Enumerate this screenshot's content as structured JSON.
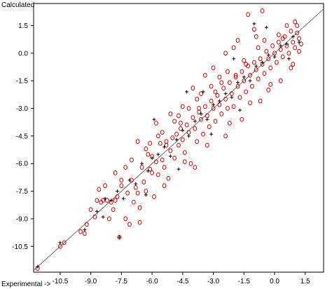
{
  "chart_data": {
    "type": "scatter",
    "title": "",
    "ylabel": "Calculated",
    "xlabel": "Experimental ->",
    "xlim": [
      -11.8,
      2.4
    ],
    "ylim": [
      -11.9,
      2.7
    ],
    "x_ticks": [
      -10.5,
      -9.0,
      -7.5,
      -6.0,
      -4.5,
      -3.0,
      -1.5,
      0.0,
      1.5
    ],
    "x_tick_labels": [
      "-10.5",
      "-9.0",
      "-7.5",
      "-6.0",
      "-4.5",
      "-3.0",
      "-1.5",
      "0.0",
      "1.5"
    ],
    "y_ticks": [
      1.5,
      0.0,
      -1.5,
      -3.0,
      -4.5,
      -6.0,
      -7.5,
      -9.0,
      -10.5
    ],
    "y_tick_labels": [
      "1.5",
      "0.0",
      "-1.5",
      "-3.0",
      "-4.5",
      "-6.0",
      "-7.5",
      "-9.0",
      "-10.5"
    ],
    "grid": false,
    "legend": "none",
    "reference_line": {
      "from": [
        -11.8,
        -11.8
      ],
      "to": [
        2.4,
        2.4
      ]
    },
    "series": [
      {
        "marker": "circle",
        "color": "#dd0000",
        "note_points": "dense cloud along the diagonal; representative sample",
        "points": [
          [
            -11.6,
            -11.7
          ],
          [
            -10.5,
            -10.5
          ],
          [
            -10.3,
            -10.3
          ],
          [
            -9.5,
            -9.7
          ],
          [
            -9.3,
            -9.8
          ],
          [
            -9.2,
            -9.3
          ],
          [
            -8.8,
            -8.9
          ],
          [
            -8.7,
            -8.0
          ],
          [
            -8.5,
            -8.1
          ],
          [
            -8.4,
            -8.0
          ],
          [
            -8.2,
            -8.0
          ],
          [
            -8.1,
            -9.0
          ],
          [
            -8.0,
            -8.1
          ],
          [
            -7.9,
            -8.5
          ],
          [
            -7.8,
            -8.0
          ],
          [
            -7.7,
            -7.8
          ],
          [
            -7.6,
            -10.0
          ],
          [
            -7.5,
            -7.2
          ],
          [
            -7.3,
            -9.0
          ],
          [
            -7.2,
            -7.6
          ],
          [
            -7.1,
            -9.3
          ],
          [
            -7.0,
            -6.9
          ],
          [
            -6.9,
            -8.1
          ],
          [
            -6.8,
            -7.3
          ],
          [
            -6.7,
            -7.6
          ],
          [
            -6.6,
            -8.4
          ],
          [
            -6.5,
            -6.2
          ],
          [
            -6.4,
            -7.0
          ],
          [
            -6.3,
            -7.5
          ],
          [
            -6.2,
            -5.5
          ],
          [
            -6.1,
            -6.3
          ],
          [
            -6.0,
            -6.5
          ],
          [
            -5.9,
            -7.8
          ],
          [
            -5.8,
            -5.9
          ],
          [
            -5.7,
            -6.6
          ],
          [
            -5.6,
            -4.9
          ],
          [
            -5.5,
            -5.8
          ],
          [
            -5.4,
            -6.2
          ],
          [
            -5.3,
            -5.0
          ],
          [
            -5.2,
            -6.8
          ],
          [
            -5.1,
            -5.3
          ],
          [
            -5.0,
            -4.6
          ],
          [
            -4.9,
            -5.7
          ],
          [
            -4.8,
            -4.4
          ],
          [
            -4.7,
            -5.0
          ],
          [
            -4.6,
            -3.8
          ],
          [
            -4.5,
            -4.7
          ],
          [
            -4.4,
            -5.4
          ],
          [
            -4.3,
            -3.9
          ],
          [
            -4.2,
            -4.3
          ],
          [
            -4.1,
            -6.0
          ],
          [
            -4.0,
            -3.5
          ],
          [
            -3.9,
            -4.1
          ],
          [
            -3.8,
            -4.8
          ],
          [
            -3.7,
            -3.2
          ],
          [
            -3.6,
            -3.6
          ],
          [
            -3.5,
            -4.4
          ],
          [
            -3.4,
            -2.9
          ],
          [
            -3.3,
            -3.4
          ],
          [
            -3.2,
            -4.0
          ],
          [
            -3.1,
            -2.6
          ],
          [
            -3.0,
            -3.0
          ],
          [
            -2.9,
            -3.7
          ],
          [
            -2.8,
            -2.3
          ],
          [
            -2.7,
            -2.8
          ],
          [
            -2.6,
            -3.3
          ],
          [
            -2.5,
            -1.9
          ],
          [
            -2.4,
            -2.5
          ],
          [
            -2.3,
            -3.0
          ],
          [
            -2.2,
            -1.6
          ],
          [
            -2.1,
            -2.2
          ],
          [
            -2.0,
            -2.9
          ],
          [
            -1.9,
            -1.3
          ],
          [
            -1.8,
            -1.8
          ],
          [
            -1.7,
            -2.4
          ],
          [
            -1.6,
            -1.0
          ],
          [
            -1.5,
            -1.5
          ],
          [
            -1.4,
            -2.1
          ],
          [
            -1.3,
            -0.7
          ],
          [
            -1.2,
            -1.2
          ],
          [
            -1.1,
            -1.8
          ],
          [
            -1.0,
            -0.5
          ],
          [
            -0.9,
            -0.9
          ],
          [
            -0.8,
            -1.4
          ],
          [
            -0.7,
            -0.3
          ],
          [
            -0.6,
            -0.6
          ],
          [
            -0.5,
            -1.1
          ],
          [
            -0.4,
            0.1
          ],
          [
            -0.3,
            -0.3
          ],
          [
            -0.2,
            -0.8
          ],
          [
            -0.1,
            0.4
          ],
          [
            0.0,
            0.0
          ],
          [
            0.1,
            -0.5
          ],
          [
            0.2,
            0.6
          ],
          [
            0.3,
            0.2
          ],
          [
            0.4,
            -0.2
          ],
          [
            0.5,
            0.9
          ],
          [
            0.6,
            0.4
          ],
          [
            0.7,
            0.0
          ],
          [
            0.8,
            1.2
          ],
          [
            0.9,
            0.6
          ],
          [
            1.0,
            0.3
          ],
          [
            1.1,
            1.5
          ],
          [
            1.2,
            0.8
          ],
          [
            1.3,
            0.5
          ],
          [
            -1.0,
            1.3
          ],
          [
            -1.3,
            2.1
          ],
          [
            -0.6,
            2.3
          ],
          [
            -2.0,
            0.3
          ],
          [
            -3.4,
            -1.2
          ],
          [
            -4.5,
            -2.9
          ],
          [
            -5.8,
            -3.8
          ],
          [
            -6.7,
            -4.8
          ],
          [
            -5.1,
            -3.3
          ],
          [
            -2.4,
            -4.5
          ],
          [
            -1.6,
            -3.6
          ],
          [
            -0.7,
            -2.6
          ],
          [
            -3.9,
            -6.2
          ],
          [
            -5.4,
            -7.2
          ],
          [
            -6.6,
            -9.2
          ],
          [
            -8.3,
            -7.2
          ],
          [
            -9.0,
            -8.5
          ],
          [
            -7.5,
            -6.9
          ],
          [
            -4.0,
            -1.9
          ],
          [
            -3.0,
            -0.8
          ],
          [
            -2.4,
            0.0
          ],
          [
            -1.8,
            0.7
          ],
          [
            -0.9,
            0.9
          ],
          [
            0.6,
            1.5
          ],
          [
            1.0,
            1.7
          ],
          [
            0.8,
            -0.8
          ],
          [
            0.3,
            -1.5
          ],
          [
            -0.3,
            -2.0
          ],
          [
            -2.7,
            -1.3
          ],
          [
            -3.6,
            -2.2
          ],
          [
            -4.7,
            -3.4
          ],
          [
            -5.5,
            -4.3
          ],
          [
            -6.1,
            -4.9
          ],
          [
            -7.0,
            -5.8
          ],
          [
            -7.8,
            -6.5
          ],
          [
            -8.6,
            -7.4
          ],
          [
            -4.4,
            -5.9
          ],
          [
            -3.3,
            -5.0
          ],
          [
            -2.2,
            -3.8
          ],
          [
            -1.2,
            -2.7
          ],
          [
            -0.2,
            -1.7
          ],
          [
            0.9,
            -0.6
          ],
          [
            1.2,
            0.1
          ],
          [
            -1.5,
            -0.4
          ],
          [
            -2.3,
            -1.0
          ],
          [
            -3.1,
            -1.8
          ],
          [
            -3.8,
            -2.5
          ],
          [
            -4.2,
            -3.0
          ],
          [
            -4.9,
            -3.7
          ],
          [
            -5.7,
            -4.5
          ],
          [
            -6.3,
            -5.2
          ],
          [
            -7.3,
            -6.2
          ],
          [
            -0.5,
            0.7
          ],
          [
            0.2,
            1.0
          ],
          [
            -2.9,
            -2.1
          ],
          [
            -1.9,
            -1.2
          ],
          [
            -3.7,
            -3.0
          ],
          [
            -4.6,
            -4.1
          ],
          [
            -5.3,
            -4.8
          ],
          [
            -6.0,
            -5.6
          ],
          [
            -2.6,
            -1.6
          ],
          [
            -1.4,
            -0.6
          ],
          [
            -0.8,
            0.3
          ],
          [
            0.4,
            0.8
          ],
          [
            1.1,
            1.1
          ]
        ]
      },
      {
        "marker": "plus",
        "color": "#000000",
        "points": [
          [
            -11.6,
            -11.6
          ],
          [
            -10.5,
            -10.3
          ],
          [
            -9.3,
            -9.6
          ],
          [
            -8.7,
            -8.6
          ],
          [
            -8.3,
            -7.9
          ],
          [
            -8.0,
            -8.0
          ],
          [
            -7.7,
            -7.5
          ],
          [
            -7.4,
            -7.9
          ],
          [
            -7.1,
            -6.9
          ],
          [
            -6.8,
            -7.1
          ],
          [
            -6.5,
            -6.0
          ],
          [
            -6.2,
            -6.4
          ],
          [
            -6.0,
            -5.7
          ],
          [
            -5.7,
            -5.5
          ],
          [
            -5.4,
            -5.1
          ],
          [
            -5.1,
            -5.6
          ],
          [
            -4.8,
            -4.7
          ],
          [
            -4.5,
            -4.2
          ],
          [
            -4.2,
            -4.5
          ],
          [
            -3.9,
            -3.7
          ],
          [
            -3.6,
            -3.3
          ],
          [
            -3.3,
            -3.6
          ],
          [
            -3.0,
            -2.8
          ],
          [
            -2.7,
            -2.6
          ],
          [
            -2.4,
            -2.2
          ],
          [
            -2.1,
            -2.4
          ],
          [
            -1.8,
            -1.6
          ],
          [
            -1.5,
            -1.3
          ],
          [
            -1.2,
            -1.5
          ],
          [
            -0.9,
            -0.7
          ],
          [
            -0.6,
            -0.5
          ],
          [
            -0.3,
            -0.1
          ],
          [
            0.0,
            -0.2
          ],
          [
            0.3,
            0.4
          ],
          [
            0.6,
            0.5
          ],
          [
            0.9,
            0.9
          ],
          [
            1.2,
            0.6
          ],
          [
            -1.0,
            1.6
          ],
          [
            -4.3,
            -2.1
          ],
          [
            -5.9,
            -3.6
          ],
          [
            -7.6,
            -10.0
          ],
          [
            -6.3,
            -7.7
          ],
          [
            -3.5,
            -2.1
          ],
          [
            -2.0,
            -0.3
          ],
          [
            -0.4,
            1.4
          ],
          [
            0.7,
            -0.3
          ],
          [
            -1.7,
            -3.1
          ],
          [
            -3.1,
            -4.4
          ],
          [
            -4.7,
            -6.3
          ],
          [
            -8.4,
            -8.9
          ]
        ]
      }
    ]
  }
}
